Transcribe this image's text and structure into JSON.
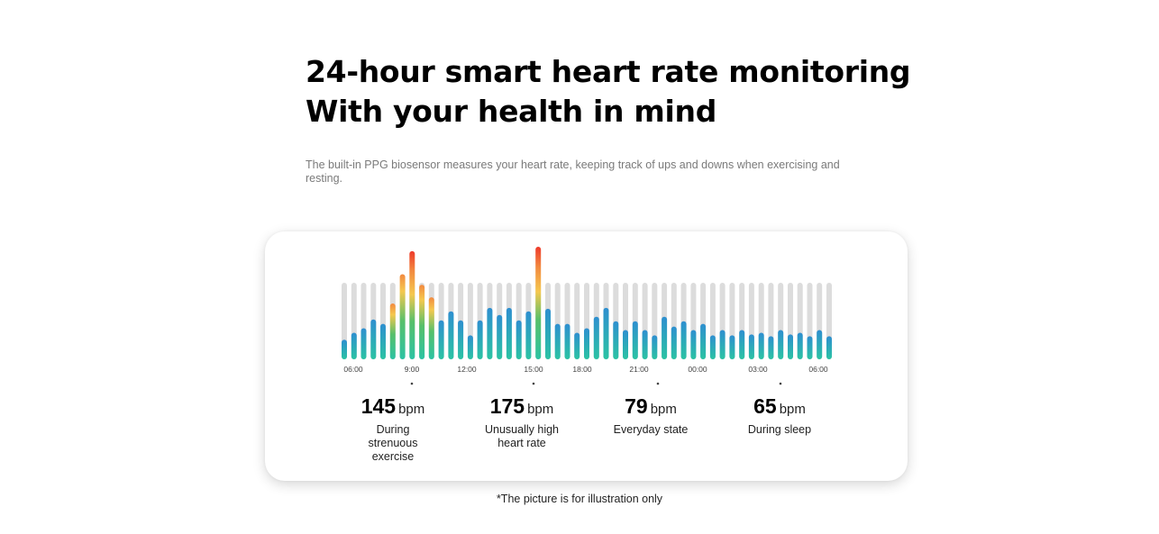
{
  "headline": {
    "line1": "24-hour smart heart rate monitoring",
    "line2": "With your health in mind"
  },
  "description": "The built-in PPG biosensor measures your heart rate, keeping track of ups and downs when exercising and resting.",
  "chart_data": {
    "type": "bar",
    "x_tick_labels": [
      "06:00",
      "9:00",
      "12:00",
      "15:00",
      "18:00",
      "21:00",
      "00:00",
      "03:00",
      "06:00"
    ],
    "values": [
      22,
      30,
      35,
      45,
      40,
      63,
      96,
      122,
      84,
      70,
      44,
      54,
      44,
      27,
      44,
      58,
      50,
      58,
      44,
      54,
      127,
      57,
      40,
      40,
      30,
      35,
      48,
      58,
      43,
      33,
      43,
      33,
      27,
      48,
      37,
      43,
      33,
      40,
      27,
      33,
      27,
      33,
      28,
      30,
      26,
      33,
      28,
      30,
      26,
      33,
      26
    ],
    "background_level": 100,
    "colors": {
      "track": "#dcdcdc",
      "low": "#2bc3a3",
      "mid": "#2e8fd0",
      "high_yellow": "#f5c84e",
      "high_orange": "#f2893f",
      "peak_red": "#ee3a2b"
    }
  },
  "stats": [
    {
      "value": "145",
      "unit": "bpm",
      "label": "During strenuous exercise"
    },
    {
      "value": "175",
      "unit": "bpm",
      "label": "Unusually high heart rate"
    },
    {
      "value": "79",
      "unit": "bpm",
      "label": "Everyday state"
    },
    {
      "value": "65",
      "unit": "bpm",
      "label": "During sleep"
    }
  ],
  "footnote": "*The picture is for illustration only"
}
